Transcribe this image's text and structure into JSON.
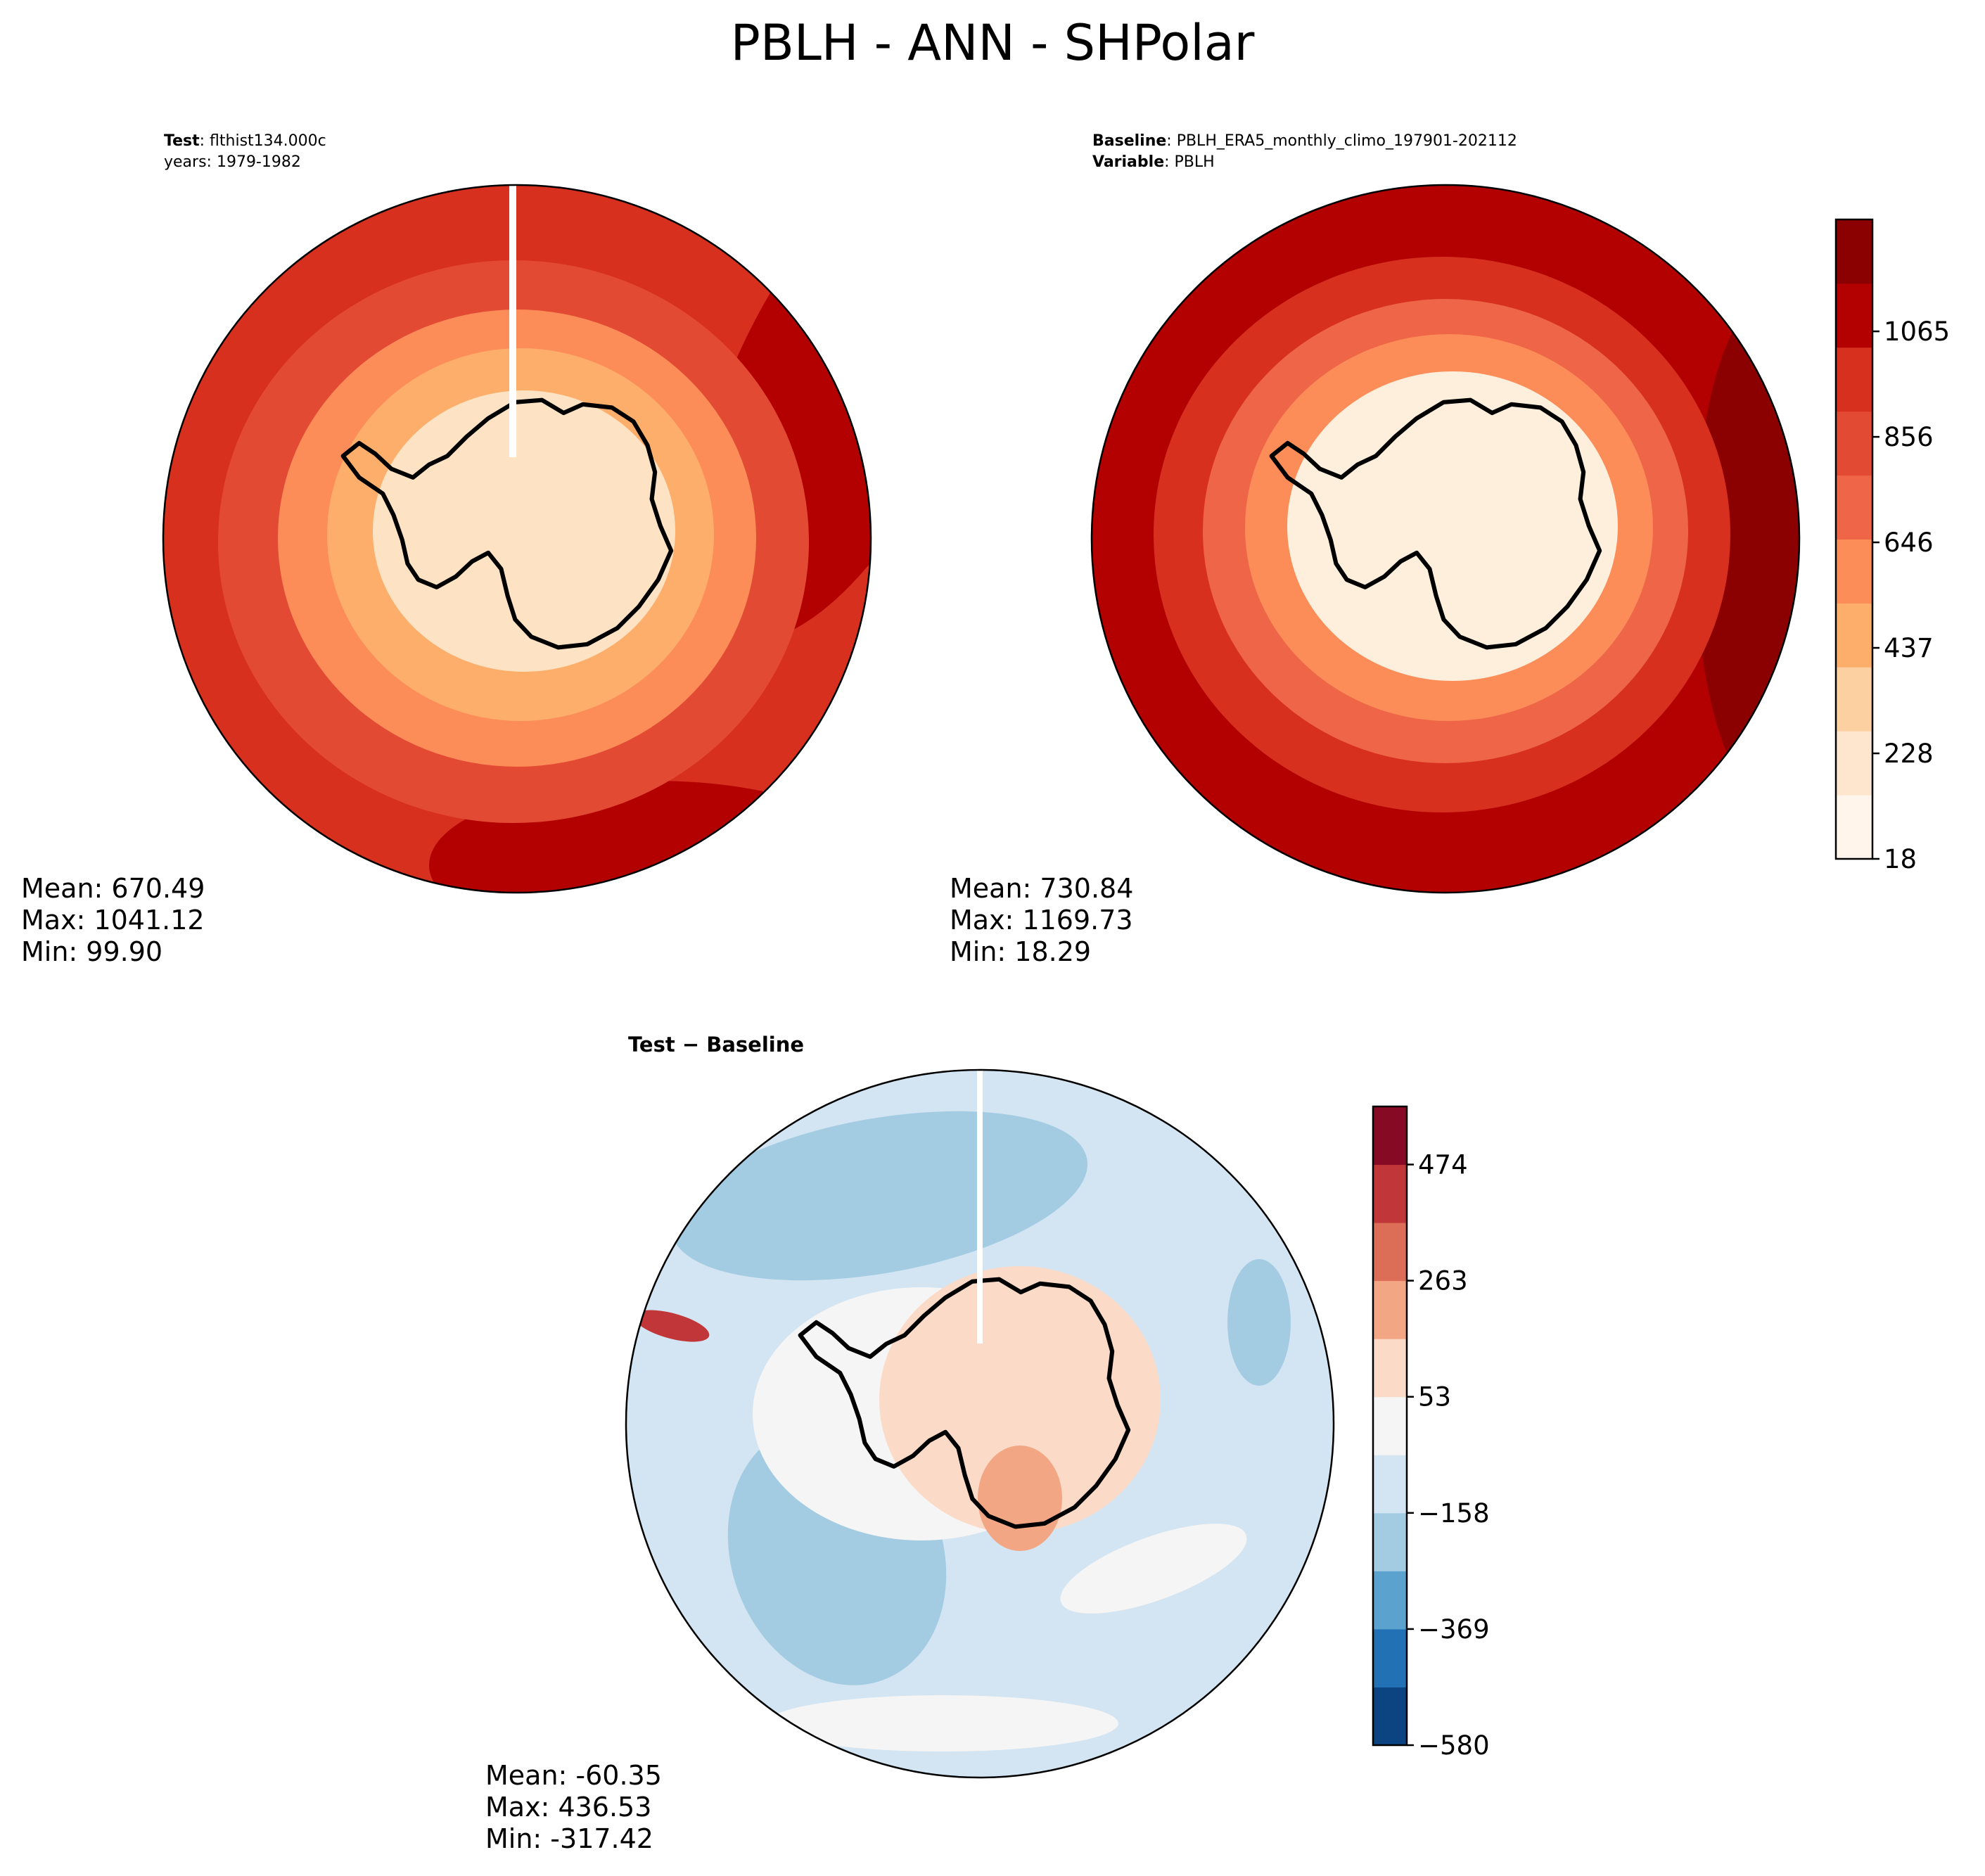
{
  "figure_title": "PBLH - ANN - SHPolar",
  "test_panel": {
    "header_key1": "Test",
    "header_val1": ": flthist134.000c",
    "header_line2": "years: 1979-1982",
    "mean": "Mean: 670.49",
    "max": "Max: 1041.12",
    "min": "Min: 99.90"
  },
  "baseline_panel": {
    "header_key1": "Baseline",
    "header_val1": ": PBLH_ERA5_monthly_climo_197901-202112",
    "header_key2": "Variable",
    "header_val2": ": PBLH",
    "mean": "Mean: 730.84",
    "max": "Max: 1169.73",
    "min": "Min: 18.29"
  },
  "diff_panel": {
    "title": "Test − Baseline",
    "mean": "Mean: -60.35",
    "max": "Max: 436.53",
    "min": "Min: -317.42"
  },
  "colorbar_main": {
    "ticks": [
      "18",
      "228",
      "437",
      "646",
      "856",
      "1065"
    ],
    "colors": [
      "#fff5eb",
      "#fee6ce",
      "#fdd0a2",
      "#fdae6b",
      "#fc8d59",
      "#ef6548",
      "#e34a33",
      "#d7301f",
      "#b30000",
      "#8b0000"
    ]
  },
  "colorbar_diff": {
    "ticks": [
      "−580",
      "−369",
      "−158",
      "53",
      "263",
      "474"
    ],
    "colors": [
      "#0b4480",
      "#2271b5",
      "#5ba2cf",
      "#a3cce3",
      "#d3e5f2",
      "#f5f5f5",
      "#fbdbc8",
      "#f3a683",
      "#dc6e57",
      "#c13639",
      "#870a24"
    ]
  },
  "map_colors": {
    "test": {
      "ocean_outer": "#d7301f",
      "ring1": "#e34a33",
      "ring2": "#fc8d59",
      "ring3": "#fdae6b",
      "ring4": "#fdd0a2",
      "land": "#fde3c3",
      "warm_patch": "#b30000"
    },
    "baseline": {
      "ocean_outer": "#b30000",
      "ring1": "#d7301f",
      "ring2": "#ef6548",
      "ring3": "#fc8d59",
      "ring4": "#fdd0a2",
      "land": "#feefdc",
      "warm_patch": "#8b0000"
    },
    "diff": {
      "ocean": "#d3e5f2",
      "neg_patch": "#a3cce3",
      "near_zero": "#f5f5f5",
      "land": "#fbdbc8",
      "pos_patch": "#f3a683",
      "peak": "#c13639"
    }
  }
}
